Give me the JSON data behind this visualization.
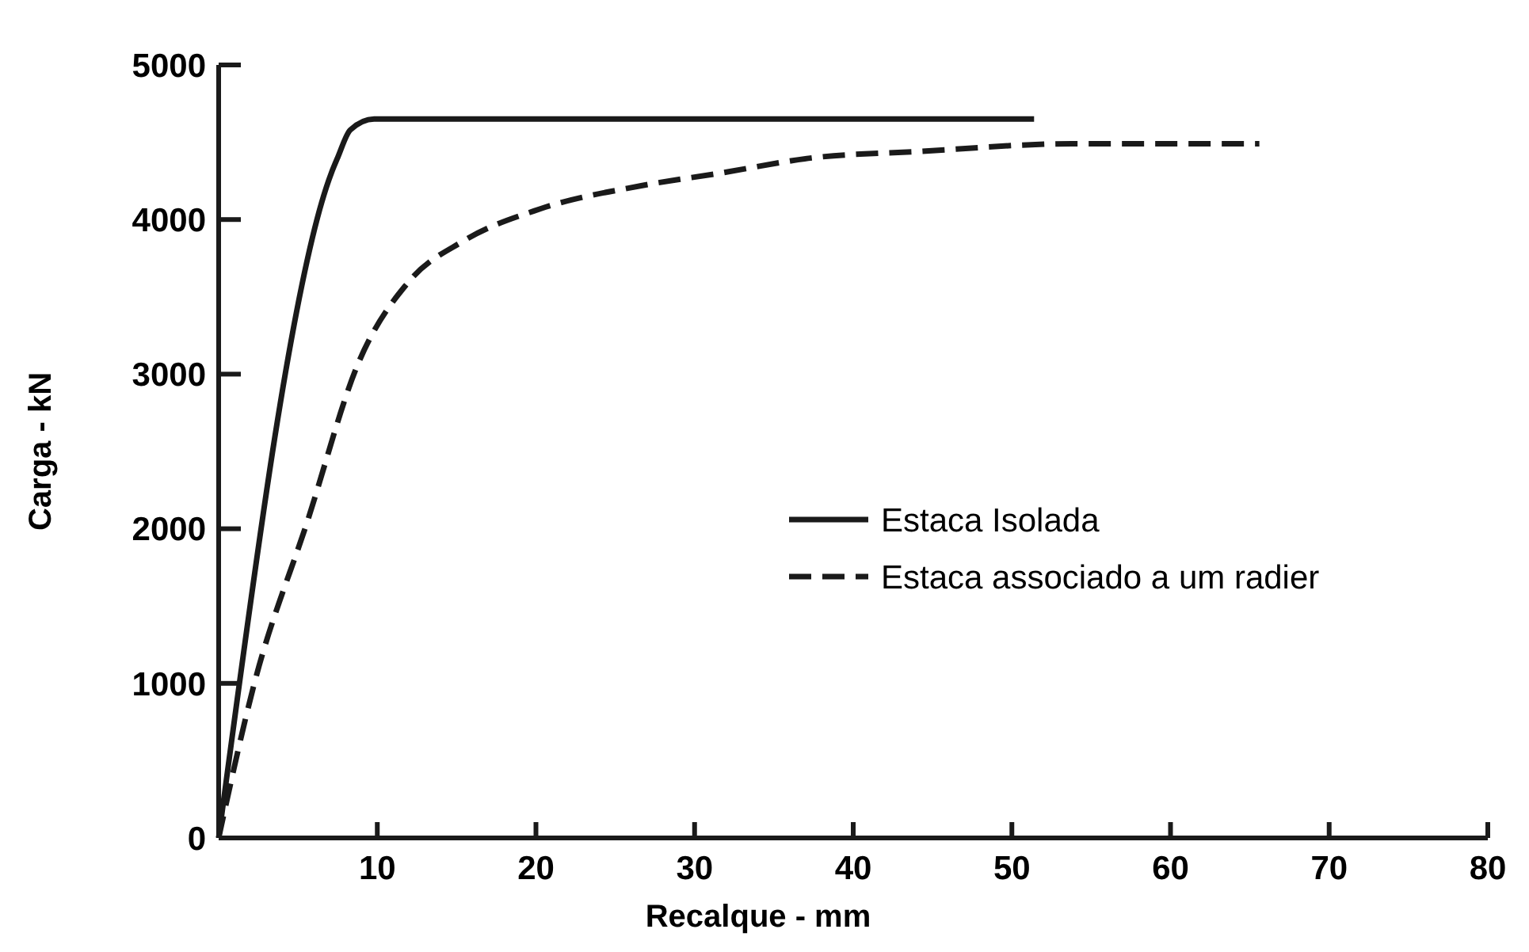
{
  "chart_data": {
    "type": "line",
    "xlabel": "Recalque - mm",
    "ylabel": "Carga - kN",
    "xlim": [
      0,
      80
    ],
    "xticks": [
      10,
      20,
      30,
      40,
      50,
      60,
      70,
      80
    ],
    "ylim": [
      0,
      5000
    ],
    "yticks": [
      0,
      1000,
      2000,
      3000,
      4000,
      5000
    ],
    "grid": false,
    "legend": "right",
    "marker": "none",
    "series": [
      {
        "name": "Estaca Isolada",
        "color": "#1a1a1a",
        "line_style": "solid",
        "x": [
          0,
          7.1,
          7.5,
          8.3,
          9.8,
          20,
          51.4
        ],
        "values": [
          0,
          4300,
          4400,
          4580,
          4650,
          4650,
          4650
        ]
      },
      {
        "name": "Estaca associado a um radier",
        "color": "#1a1a1a",
        "line_style": "dashed",
        "x": [
          0,
          2.25,
          5.6,
          8.8,
          12,
          15.4,
          20.3,
          26.7,
          31.6,
          37.5,
          44,
          53.8,
          65.6
        ],
        "values": [
          0,
          1000,
          2050,
          3070,
          3600,
          3860,
          4070,
          4220,
          4300,
          4400,
          4440,
          4490,
          4490
        ]
      }
    ]
  }
}
